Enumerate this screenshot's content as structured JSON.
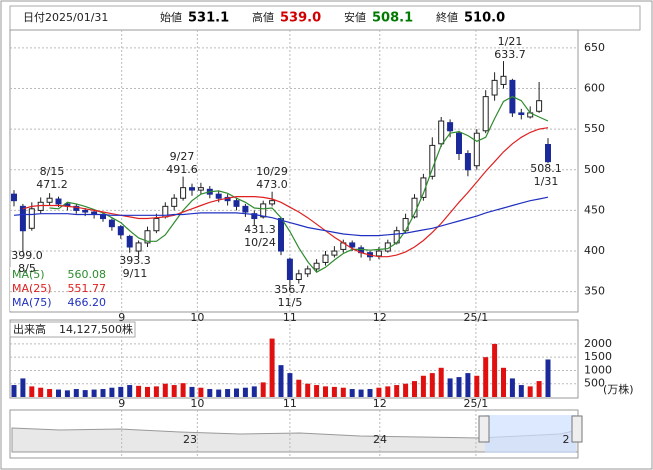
{
  "header": {
    "date_label": "日付",
    "date": "2025/01/31",
    "items": [
      {
        "label": "始値",
        "value": "531.1",
        "color": "#000"
      },
      {
        "label": "高値",
        "value": "539.0",
        "color": "#d00000"
      },
      {
        "label": "安値",
        "value": "508.1",
        "color": "#007a00"
      },
      {
        "label": "終値",
        "value": "510.0",
        "color": "#000"
      }
    ]
  },
  "chart_data": {
    "type": "candlestick",
    "open": [
      470,
      455,
      428,
      450,
      460,
      464,
      458,
      455,
      450,
      448,
      444,
      438,
      430,
      418,
      400,
      410,
      425,
      442,
      455,
      465,
      478,
      475,
      476,
      470,
      466,
      462,
      455,
      446,
      442,
      458,
      440,
      390,
      365,
      372,
      378,
      386,
      395,
      402,
      410,
      404,
      398,
      394,
      400,
      410,
      425,
      442,
      466,
      492,
      532,
      558,
      545,
      520,
      505,
      548,
      592,
      605,
      610,
      570,
      565,
      572,
      531.1
    ],
    "high": [
      475,
      458,
      460,
      466,
      471.2,
      467,
      460,
      458,
      453,
      450,
      447,
      440,
      432,
      420,
      413,
      430,
      446,
      460,
      470,
      491.6,
      483,
      484,
      480,
      474,
      470,
      465,
      458,
      450,
      462,
      473,
      442,
      392,
      377,
      382,
      390,
      400,
      406,
      414,
      413,
      407,
      400,
      405,
      414,
      430,
      446,
      470,
      495,
      540,
      565,
      562,
      548,
      524,
      550,
      598,
      620,
      633.7,
      612,
      575,
      578,
      608,
      539
    ],
    "low": [
      455,
      399,
      425,
      446,
      456,
      454,
      450,
      446,
      443,
      440,
      436,
      425,
      415,
      398,
      393.3,
      405,
      422,
      440,
      450,
      462,
      468,
      470,
      465,
      460,
      456,
      450,
      442,
      431.3,
      440,
      455,
      395,
      356.7,
      360,
      368,
      375,
      382,
      392,
      398,
      400,
      392,
      388,
      390,
      398,
      408,
      422,
      440,
      462,
      488,
      528,
      540,
      512,
      492,
      500,
      545,
      585,
      600,
      565,
      562,
      563,
      570,
      508.1
    ],
    "close": [
      462,
      425,
      452,
      460,
      465,
      458,
      456,
      450,
      448,
      445,
      440,
      430,
      420,
      405,
      410,
      425,
      440,
      455,
      465,
      478,
      475,
      478,
      470,
      465,
      462,
      455,
      448,
      440,
      458,
      462,
      400,
      365,
      372,
      378,
      385,
      395,
      400,
      410,
      405,
      398,
      393,
      400,
      410,
      425,
      440,
      465,
      490,
      530,
      560,
      548,
      520,
      500,
      545,
      590,
      610,
      615,
      570,
      568,
      570,
      585,
      510
    ],
    "ylim": [
      325,
      672
    ],
    "yticks": [
      350,
      400,
      450,
      500,
      550,
      600,
      650
    ],
    "xticks": [
      {
        "value": 12.1,
        "label": "9"
      },
      {
        "value": 20.6,
        "label": "10"
      },
      {
        "value": 31,
        "label": "11"
      },
      {
        "value": 41.1,
        "label": "12"
      },
      {
        "value": 51.9,
        "label": "25/1"
      }
    ],
    "ma": [
      {
        "name": "MA(5)",
        "color": "#2e8b2e",
        "legend_value": 560.08,
        "values": [
          null,
          null,
          null,
          null,
          453,
          452,
          460,
          458,
          455,
          451,
          447,
          441,
          435,
          425,
          416,
          412,
          412,
          420,
          435,
          450,
          462,
          470,
          473,
          474,
          471,
          465,
          460,
          453,
          452,
          453,
          441,
          424,
          404,
          387,
          374,
          380,
          389,
          397,
          402,
          402,
          401,
          402,
          403,
          410,
          425,
          446,
          471,
          501,
          530,
          545,
          547,
          542,
          535,
          540,
          563,
          584,
          590,
          585,
          570,
          565,
          560
        ]
      },
      {
        "name": "MA(25)",
        "color": "#e02020",
        "legend_value": 551.77,
        "values": [
          null,
          452,
          455,
          456,
          456,
          456,
          455,
          454,
          452,
          450,
          448,
          446,
          444,
          442,
          440,
          440,
          441,
          442,
          444,
          448,
          452,
          456,
          460,
          463,
          465,
          467,
          467,
          467,
          466,
          464,
          460,
          454,
          448,
          441,
          433,
          425,
          417,
          410,
          403,
          398,
          395,
          393,
          393,
          395,
          399,
          405,
          413,
          423,
          434,
          447,
          460,
          472,
          485,
          498,
          510,
          522,
          532,
          540,
          546,
          550,
          551.77
        ]
      },
      {
        "name": "MA(75)",
        "color": "#2030c0",
        "legend_value": {
          "value": 466.2,
          "label": "466.20"
        },
        "values": [
          444,
          445,
          445,
          446,
          446,
          446,
          446,
          445,
          445,
          445,
          445,
          444,
          444,
          444,
          444,
          444,
          444,
          444,
          445,
          445,
          446,
          447,
          447,
          447,
          447,
          447,
          446,
          445,
          443,
          441,
          438,
          435,
          432,
          429,
          427,
          425,
          423,
          421,
          420,
          419,
          419,
          419,
          420,
          421,
          422,
          424,
          426,
          428,
          431,
          434,
          437,
          440,
          443,
          447,
          450,
          453,
          456,
          459,
          462,
          464,
          466.2
        ]
      }
    ],
    "annotations": [
      {
        "date": "8/5",
        "value": {
          "value": 399,
          "label": "399.0"
        }
      },
      {
        "date": "8/15",
        "value": 471.2
      },
      {
        "date": "9/11",
        "value": 393.3
      },
      {
        "date": "9/27",
        "value": 491.6
      },
      {
        "date": "10/24",
        "value": 431.3
      },
      {
        "date": "10/29",
        "value": {
          "value": 473,
          "label": "473.0"
        }
      },
      {
        "date": "11/5",
        "value": 356.7
      },
      {
        "date": "1/21",
        "value": 633.7
      },
      {
        "date": "1/31",
        "value": 508.1
      }
    ],
    "volume": {
      "label": "出来高",
      "total": "14,127,500株",
      "unit": "(万株)",
      "ylim": [
        0,
        2900
      ],
      "yticks": [
        500,
        1000,
        1500,
        2000
      ],
      "values": [
        450,
        700,
        400,
        350,
        300,
        280,
        250,
        300,
        260,
        280,
        300,
        350,
        380,
        450,
        420,
        380,
        400,
        500,
        450,
        520,
        380,
        350,
        300,
        280,
        300,
        320,
        350,
        400,
        550,
        2200,
        1200,
        900,
        650,
        500,
        450,
        400,
        380,
        350,
        300,
        280,
        300,
        350,
        400,
        450,
        500,
        600,
        800,
        900,
        1100,
        700,
        750,
        900,
        800,
        1500,
        2000,
        1100,
        700,
        450,
        400,
        600,
        1413
      ]
    }
  },
  "navigator": {
    "labels": [
      "23",
      "24",
      "2"
    ]
  }
}
